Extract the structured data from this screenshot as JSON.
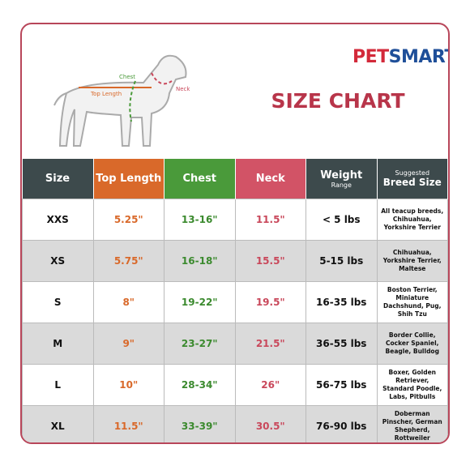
{
  "header": {
    "brand_left": "PET",
    "brand_right": "SMART",
    "title": "SIZE CHART"
  },
  "diagram": {
    "chest": "Chest",
    "top_length": "Top Length",
    "neck": "Neck"
  },
  "table": {
    "columns": [
      {
        "title": "Size"
      },
      {
        "title": "Top Length"
      },
      {
        "title": "Chest"
      },
      {
        "title": "Neck"
      },
      {
        "title": "Weight",
        "subtitle": "Range"
      },
      {
        "subtitle": "Suggested",
        "title": "Breed Size"
      }
    ],
    "rows": [
      [
        "XXS",
        "5.25\"",
        "13-16\"",
        "11.5\"",
        "< 5 lbs",
        "All teacup breeds, Chihuahua, Yorkshire Terrier"
      ],
      [
        "XS",
        "5.75\"",
        "16-18\"",
        "15.5\"",
        "5-15 lbs",
        "Chihuahua, Yorkshire Terrier, Maltese"
      ],
      [
        "S",
        "8\"",
        "19-22\"",
        "19.5\"",
        "16-35 lbs",
        "Boston Terrier, Miniature Dachshund, Pug, Shih Tzu"
      ],
      [
        "M",
        "9\"",
        "23-27\"",
        "21.5\"",
        "36-55 lbs",
        "Border Collie, Cocker Spaniel, Beagle, Bulldog"
      ],
      [
        "L",
        "10\"",
        "28-34\"",
        "26\"",
        "56-75 lbs",
        "Boxer, Golden Retriever, Standard Poodle, Labs, Pitbulls"
      ],
      [
        "XL",
        "11.5\"",
        "33-39\"",
        "30.5\"",
        "76-90 lbs",
        "Doberman Pinscher, German Shepherd, Rottweiler"
      ]
    ]
  }
}
